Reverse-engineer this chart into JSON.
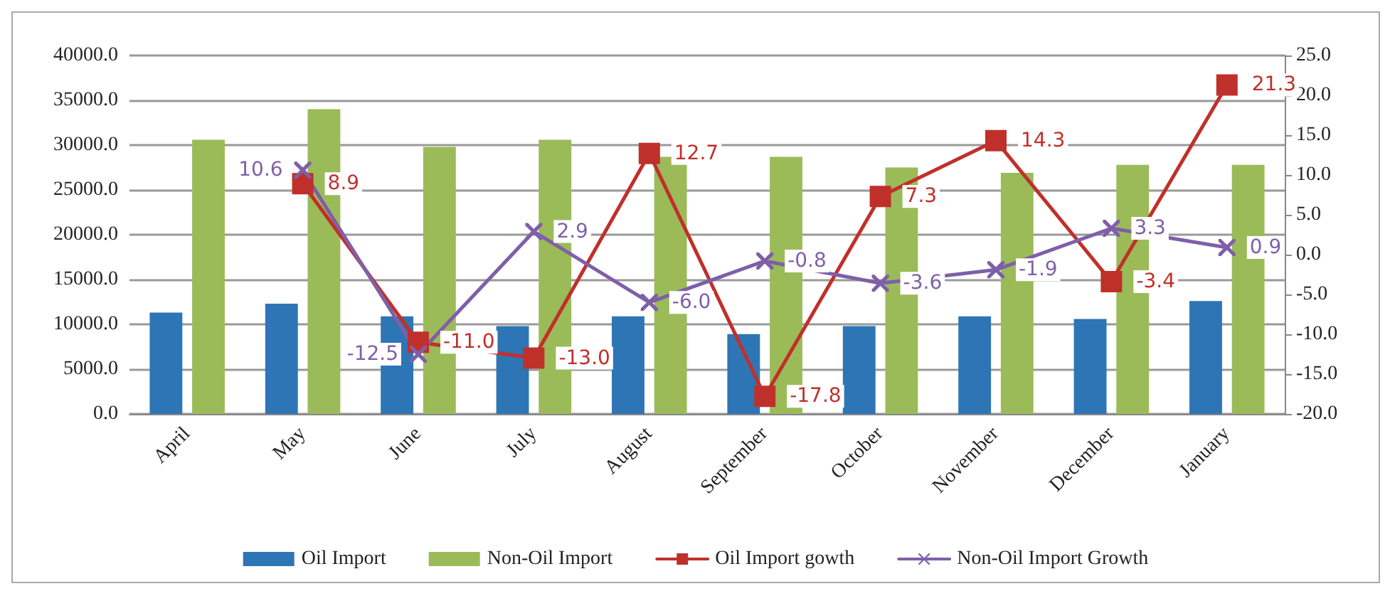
{
  "chart_data": {
    "type": "bar",
    "categories": [
      "April",
      "May",
      "June",
      "July",
      "August",
      "September",
      "October",
      "November",
      "December",
      "January"
    ],
    "series": [
      {
        "name": "Oil Import",
        "color": "#2e75b6",
        "values": [
          11300,
          12300,
          10900,
          9800,
          10900,
          8900,
          9800,
          10900,
          10600,
          12600
        ]
      },
      {
        "name": "Non-Oil Import",
        "color": "#9bbb59",
        "values": [
          30600,
          34000,
          29800,
          30600,
          28700,
          28700,
          27500,
          26900,
          27800,
          27800
        ]
      },
      {
        "name": "Oil Import gowth",
        "type": "line",
        "axis": "y2",
        "marker": "square",
        "color": "#c0302b",
        "values": [
          null,
          8.9,
          -11.0,
          -13.0,
          12.7,
          -17.8,
          7.3,
          14.3,
          -3.4,
          21.3
        ],
        "value_labels": [
          null,
          "8.9",
          "-11.0",
          "-13.0",
          "12.7",
          "-17.8",
          "7.3",
          "14.3",
          "-3.4",
          "21.3"
        ]
      },
      {
        "name": "Non-Oil Import Growth",
        "type": "line",
        "axis": "y2",
        "marker": "cross",
        "color": "#7f5fa8",
        "values": [
          null,
          10.6,
          -12.5,
          2.9,
          -6.0,
          -0.8,
          -3.6,
          -1.9,
          3.3,
          0.9
        ],
        "value_labels": [
          null,
          "10.6",
          "-12.5",
          "2.9",
          "-6.0",
          "-0.8",
          "-3.6",
          "-1.9",
          "3.3",
          "0.9"
        ]
      }
    ],
    "ylim": [
      0,
      40000
    ],
    "yticks": [
      {
        "value": 0,
        "label": "0.0"
      },
      {
        "value": 5000,
        "label": "5000.0"
      },
      {
        "value": 10000,
        "label": "10000.0"
      },
      {
        "value": 15000,
        "label": "15000.0"
      },
      {
        "value": 20000,
        "label": "20000.0"
      },
      {
        "value": 25000,
        "label": "25000.0"
      },
      {
        "value": 30000,
        "label": "30000.0"
      },
      {
        "value": 35000,
        "label": "35000.0"
      },
      {
        "value": 40000,
        "label": "40000.0"
      }
    ],
    "y2lim": [
      -20,
      25
    ],
    "y2ticks": [
      {
        "value": -20,
        "label": "-20.0"
      },
      {
        "value": -15,
        "label": "-15.0"
      },
      {
        "value": -10,
        "label": "-10.0"
      },
      {
        "value": -5,
        "label": "-5.0"
      },
      {
        "value": 0,
        "label": "0.0"
      },
      {
        "value": 5,
        "label": "5.0"
      },
      {
        "value": 10,
        "label": "10.0"
      },
      {
        "value": 15,
        "label": "15.0"
      },
      {
        "value": 20,
        "label": "20.0"
      },
      {
        "value": 25,
        "label": "25.0"
      }
    ],
    "grid": "y",
    "legend": "bottom"
  }
}
